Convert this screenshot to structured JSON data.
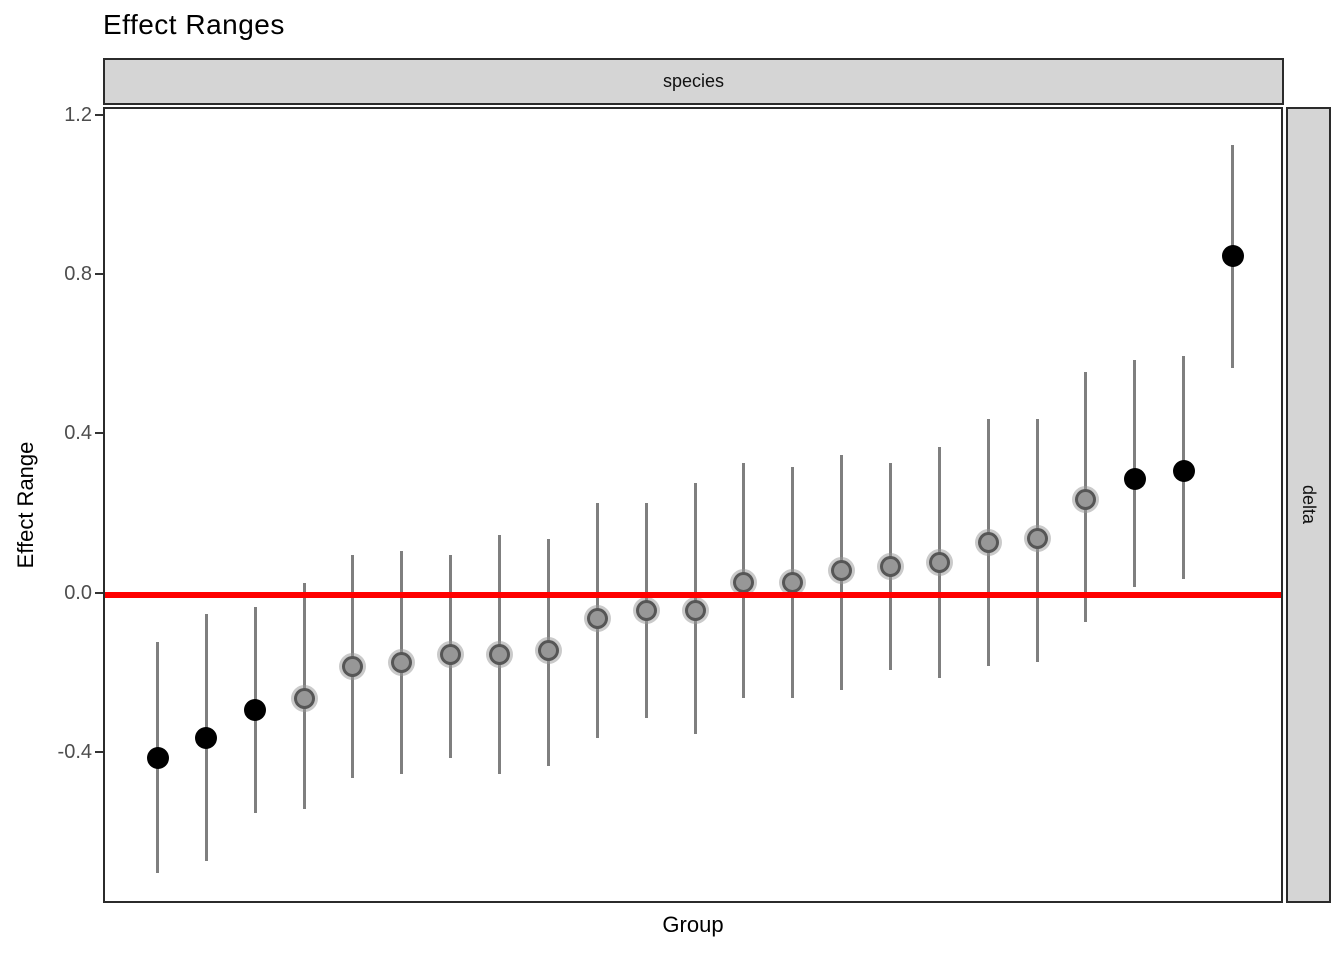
{
  "title": "Effect Ranges",
  "facets": {
    "top": "species",
    "right": "delta"
  },
  "axes": {
    "x_label": "Group",
    "y_label": "Effect Range"
  },
  "colors": {
    "reference_line": "#ff0000",
    "interval_line": "#7f7f7f",
    "point_significant": "#000000",
    "point_nonsignificant": "#979797",
    "strip_fill": "#d5d5d5",
    "panel_border": "#2b2b2b",
    "axis_text": "#4d4d4d"
  },
  "chart_data": {
    "type": "pointrange",
    "title": "Effect Ranges",
    "xlabel": "Group",
    "ylabel": "Effect Range",
    "facet_top": "species",
    "facet_right": "delta",
    "reference_line_y": 0.0,
    "ylim": [
      -0.78,
      1.22
    ],
    "yticks": [
      1.2,
      0.8,
      0.4,
      0.0,
      -0.4
    ],
    "ytick_labels": [
      "1.2",
      "0.8",
      "0.4",
      "0.0",
      "-0.4"
    ],
    "grid": false,
    "n_groups": 23,
    "points": [
      {
        "group": 1,
        "est": -0.41,
        "lower": -0.7,
        "upper": -0.12,
        "significant": true
      },
      {
        "group": 2,
        "est": -0.36,
        "lower": -0.67,
        "upper": -0.05,
        "significant": true
      },
      {
        "group": 3,
        "est": -0.29,
        "lower": -0.55,
        "upper": -0.03,
        "significant": true
      },
      {
        "group": 4,
        "est": -0.26,
        "lower": -0.54,
        "upper": 0.03,
        "significant": false
      },
      {
        "group": 5,
        "est": -0.18,
        "lower": -0.46,
        "upper": 0.1,
        "significant": false
      },
      {
        "group": 6,
        "est": -0.17,
        "lower": -0.45,
        "upper": 0.11,
        "significant": false
      },
      {
        "group": 7,
        "est": -0.15,
        "lower": -0.41,
        "upper": 0.1,
        "significant": false
      },
      {
        "group": 8,
        "est": -0.15,
        "lower": -0.45,
        "upper": 0.15,
        "significant": false
      },
      {
        "group": 9,
        "est": -0.14,
        "lower": -0.43,
        "upper": 0.14,
        "significant": false
      },
      {
        "group": 10,
        "est": -0.06,
        "lower": -0.36,
        "upper": 0.23,
        "significant": false
      },
      {
        "group": 11,
        "est": -0.04,
        "lower": -0.31,
        "upper": 0.23,
        "significant": false
      },
      {
        "group": 12,
        "est": -0.04,
        "lower": -0.35,
        "upper": 0.28,
        "significant": false
      },
      {
        "group": 13,
        "est": 0.03,
        "lower": -0.26,
        "upper": 0.33,
        "significant": false
      },
      {
        "group": 14,
        "est": 0.03,
        "lower": -0.26,
        "upper": 0.32,
        "significant": false
      },
      {
        "group": 15,
        "est": 0.06,
        "lower": -0.24,
        "upper": 0.35,
        "significant": false
      },
      {
        "group": 16,
        "est": 0.07,
        "lower": -0.19,
        "upper": 0.33,
        "significant": false
      },
      {
        "group": 17,
        "est": 0.08,
        "lower": -0.21,
        "upper": 0.37,
        "significant": false
      },
      {
        "group": 18,
        "est": 0.13,
        "lower": -0.18,
        "upper": 0.44,
        "significant": false
      },
      {
        "group": 19,
        "est": 0.14,
        "lower": -0.17,
        "upper": 0.44,
        "significant": false
      },
      {
        "group": 20,
        "est": 0.24,
        "lower": -0.07,
        "upper": 0.56,
        "significant": false
      },
      {
        "group": 21,
        "est": 0.29,
        "lower": 0.02,
        "upper": 0.59,
        "significant": true
      },
      {
        "group": 22,
        "est": 0.31,
        "lower": 0.04,
        "upper": 0.6,
        "significant": true
      },
      {
        "group": 23,
        "est": 0.85,
        "lower": 0.57,
        "upper": 1.13,
        "significant": true
      }
    ]
  }
}
